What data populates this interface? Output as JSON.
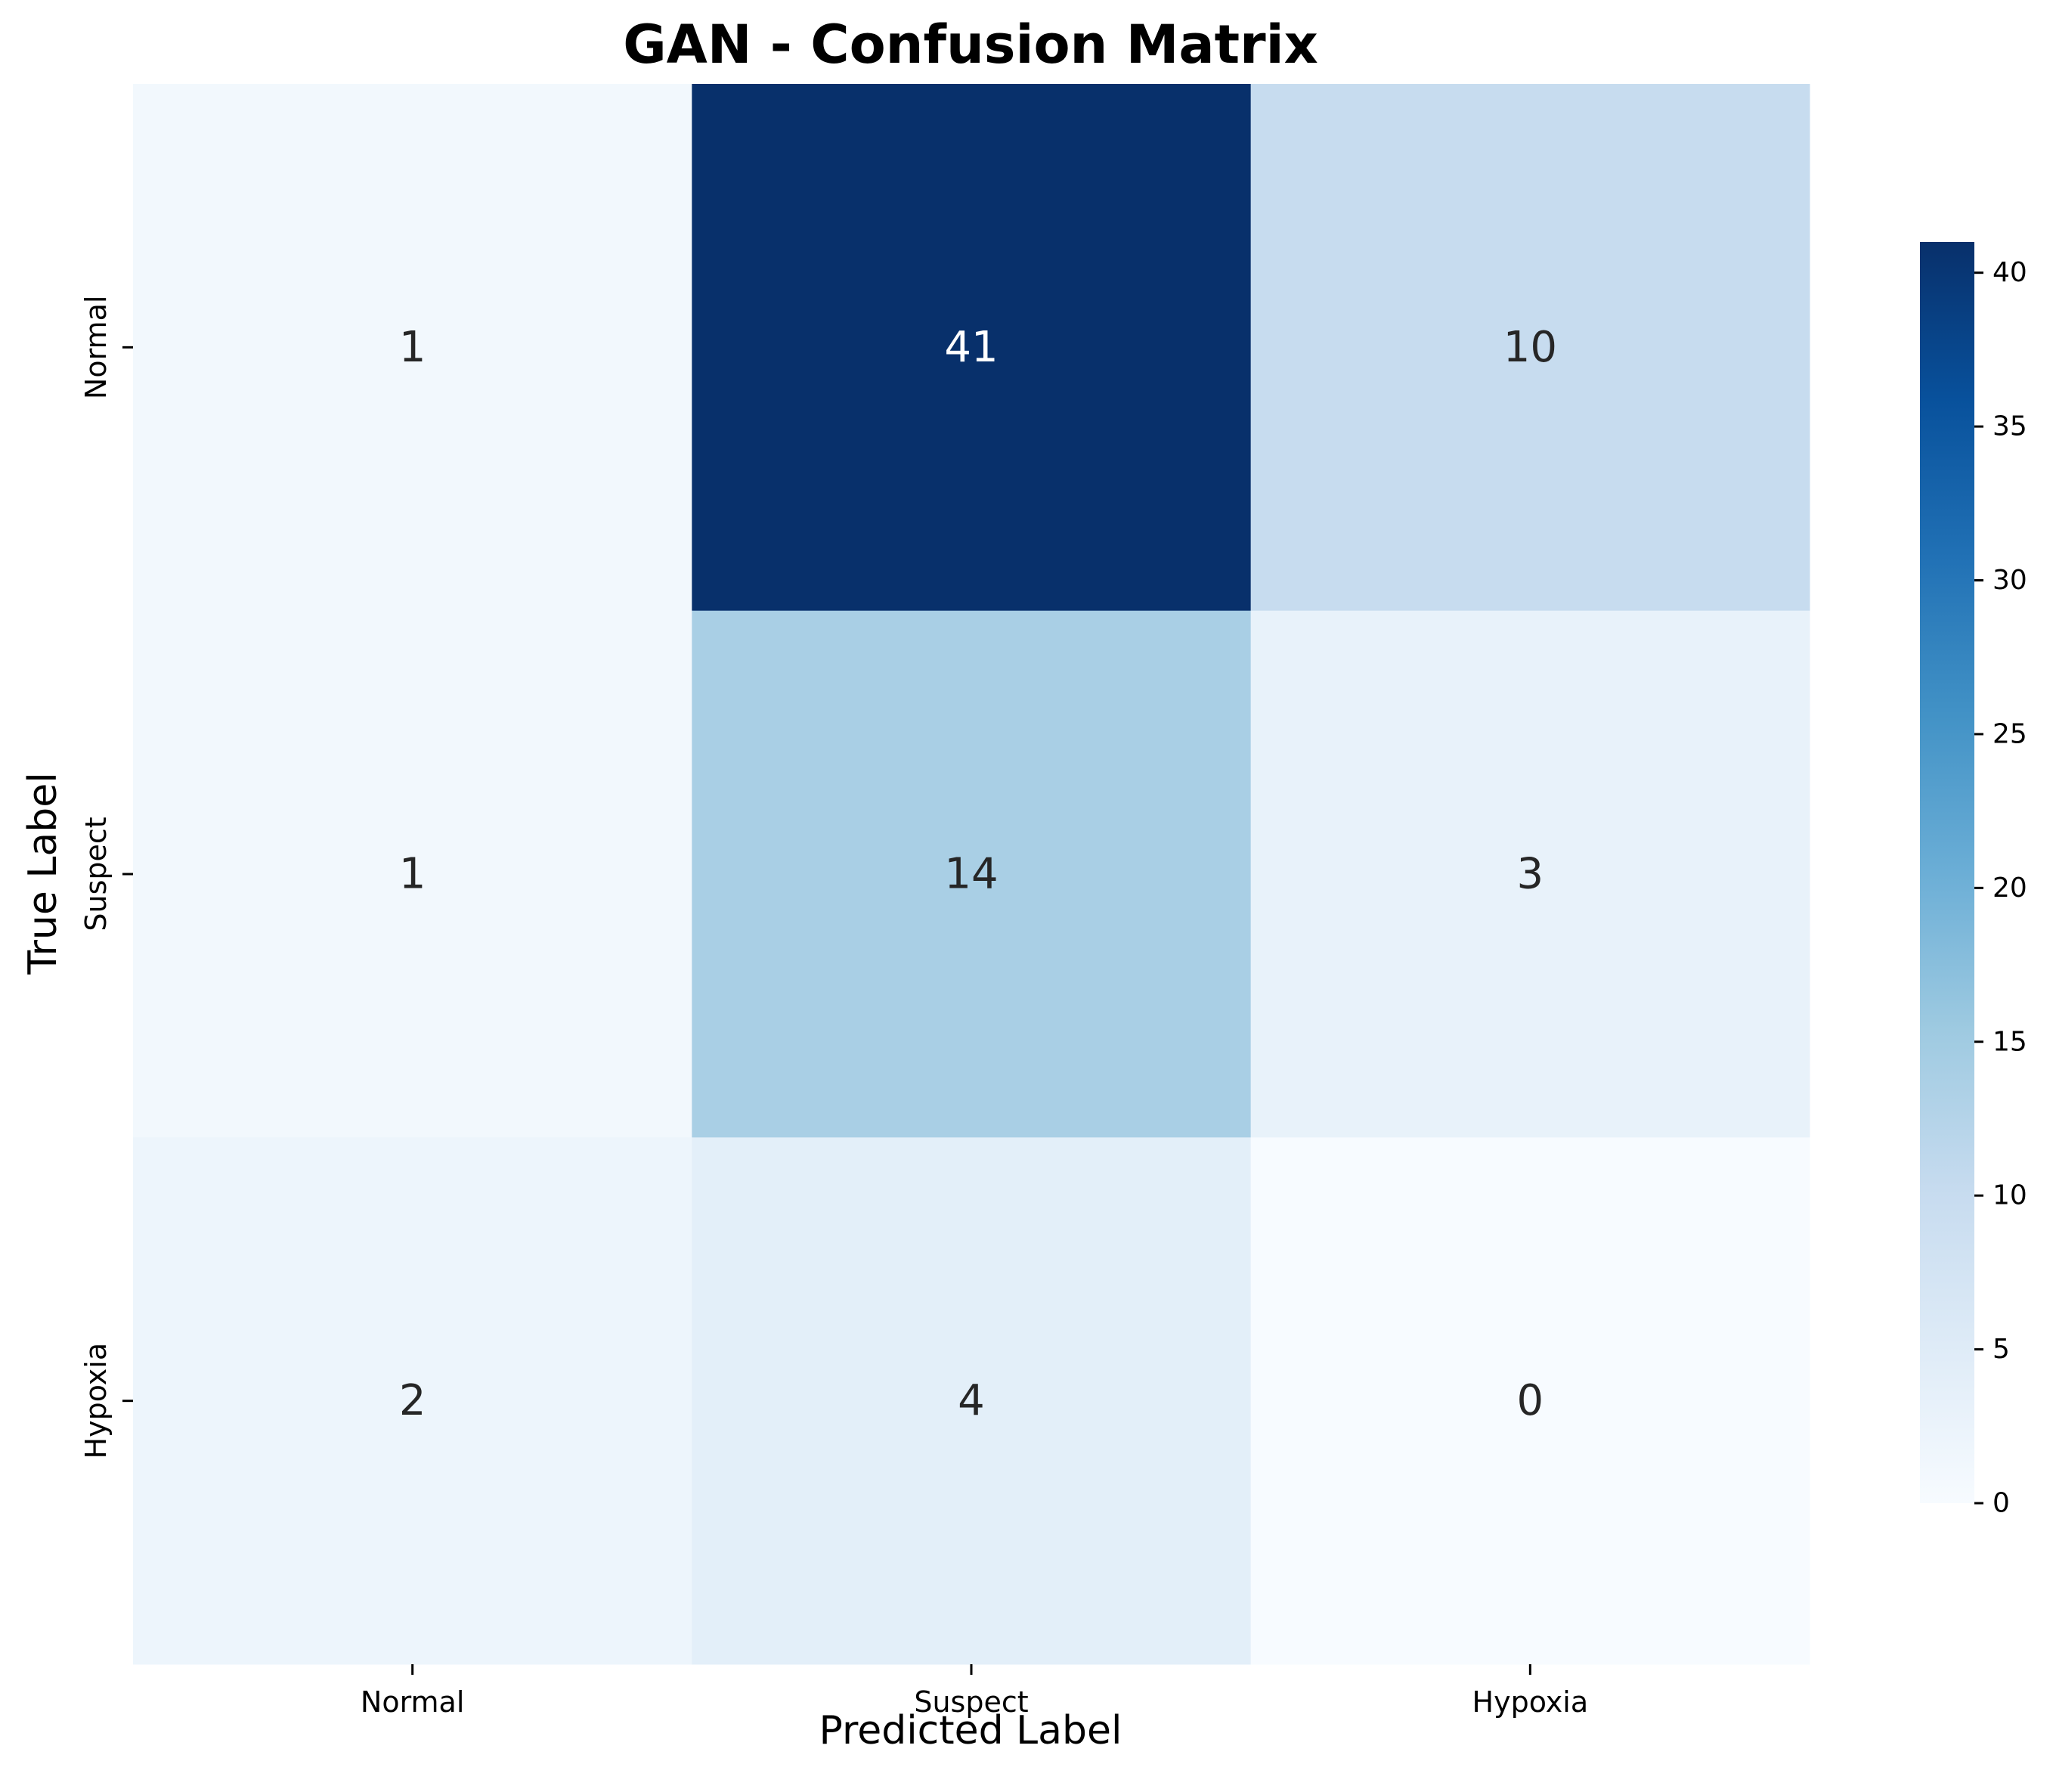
{
  "chart_data": {
    "type": "heatmap",
    "title": "GAN - Confusion Matrix",
    "xlabel": "Predicted Label",
    "ylabel": "True Label",
    "x_categories": [
      "Normal",
      "Suspect",
      "Hypoxia"
    ],
    "y_categories": [
      "Normal",
      "Suspect",
      "Hypoxia"
    ],
    "matrix": [
      [
        1,
        41,
        10
      ],
      [
        1,
        14,
        3
      ],
      [
        2,
        4,
        0
      ]
    ],
    "colormap": "Blues",
    "colorbar": {
      "range": [
        0,
        41
      ],
      "ticks": [
        0,
        5,
        10,
        15,
        20,
        25,
        30,
        35,
        40
      ]
    },
    "colors": {
      "cmap_low": "#f7fbff",
      "cmap_high": "#08306b",
      "annotation_dark": "#262626",
      "annotation_light": "#ffffff"
    }
  }
}
